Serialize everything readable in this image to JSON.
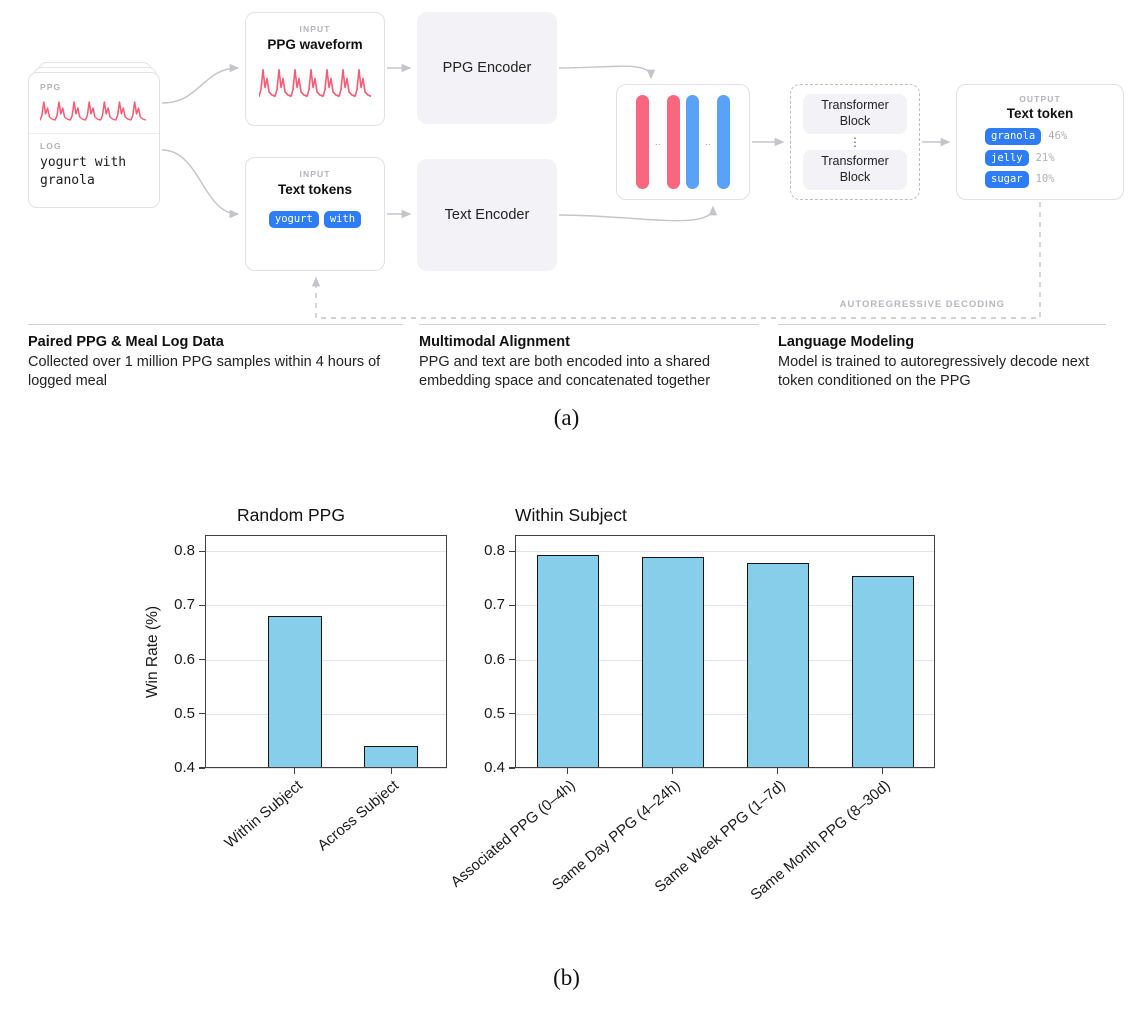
{
  "figure": {
    "caption_a": "(a)",
    "caption_b": "(b)"
  },
  "diagram": {
    "source_card": {
      "ppg_label": "PPG",
      "log_label": "LOG",
      "log_text_line1": "yogurt with",
      "log_text_line2": "granola"
    },
    "input_ppg": {
      "kicker": "INPUT",
      "title": "PPG waveform"
    },
    "input_text": {
      "kicker": "INPUT",
      "title": "Text tokens",
      "tokens": [
        {
          "text": "yogurt"
        },
        {
          "text": "with"
        }
      ]
    },
    "ppg_encoder": {
      "label": "PPG Encoder"
    },
    "text_encoder": {
      "label": "Text Encoder"
    },
    "embedding": {
      "dots": ".."
    },
    "transformer": {
      "block1": "Transformer Block",
      "block2": "Transformer Block",
      "dots": "⋮"
    },
    "output": {
      "kicker": "OUTPUT",
      "title": "Text token",
      "tokens": [
        {
          "text": "granola",
          "pct": "46%"
        },
        {
          "text": "jelly",
          "pct": "21%"
        },
        {
          "text": "sugar",
          "pct": "10%"
        }
      ]
    },
    "loop_label": "AUTOREGRESSIVE DECODING",
    "notes": [
      {
        "title": "Paired PPG & Meal Log Data",
        "body": "Collected over 1 million PPG samples within 4 hours of logged meal"
      },
      {
        "title": "Multimodal Alignment",
        "body": "PPG and text are both encoded into a shared embedding space and concatenated together"
      },
      {
        "title": "Language Modeling",
        "body": "Model is trained to autoregressively decode next token conditioned on the PPG"
      }
    ],
    "colors": {
      "ppg_pink": "#f8677f",
      "token_blue": "#2e7cf6",
      "embed_blue": "#5aa1f8",
      "arrow_gray": "#c4c4ca"
    }
  },
  "chart_data": [
    {
      "type": "bar",
      "title": "Random PPG",
      "ylabel": "Win Rate (%)",
      "xlabel": "",
      "categories": [
        "Within Subject",
        "Across Subject"
      ],
      "values": [
        0.68,
        0.44
      ],
      "ylim": [
        0.4,
        0.83
      ],
      "yticks": [
        0.4,
        0.5,
        0.6,
        0.7,
        0.8
      ],
      "grid": true,
      "legend": "none",
      "bar_color": "#87CEEB"
    },
    {
      "type": "bar",
      "title": "Within Subject",
      "ylabel": "",
      "xlabel": "",
      "categories": [
        "Associated PPG (0–4h)",
        "Same Day PPG (4–24h)",
        "Same Week PPG (1–7d)",
        "Same Month PPG (8–30d)"
      ],
      "values": [
        0.793,
        0.789,
        0.779,
        0.755
      ],
      "ylim": [
        0.4,
        0.83
      ],
      "yticks": [
        0.4,
        0.5,
        0.6,
        0.7,
        0.8
      ],
      "grid": true,
      "legend": "none",
      "bar_color": "#87CEEB"
    }
  ]
}
